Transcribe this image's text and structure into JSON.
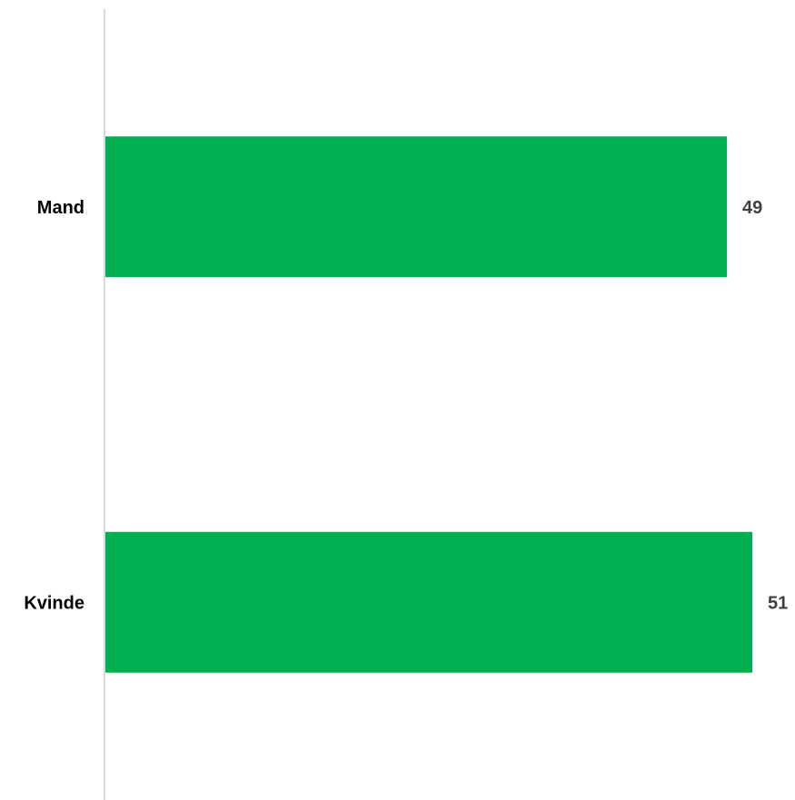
{
  "chart_data": {
    "type": "bar",
    "orientation": "horizontal",
    "title": "",
    "xlabel": "",
    "ylabel": "",
    "categories": [
      "Mand",
      "Kvinde"
    ],
    "values": [
      49,
      51
    ],
    "value_labels": [
      "49",
      "51"
    ],
    "xlim": [
      0,
      51
    ],
    "grid": false,
    "legend": "none",
    "colors": {
      "bar": "#00AF50",
      "axis": "#D9D9D9",
      "category_text": "#000000",
      "value_text": "#404040"
    }
  }
}
